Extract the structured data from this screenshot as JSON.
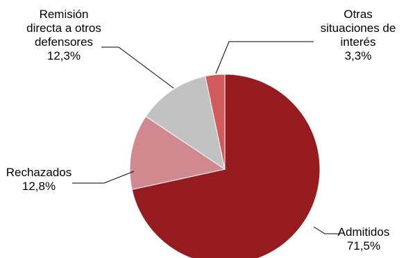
{
  "chart_data": {
    "type": "pie",
    "title": "",
    "slices": [
      {
        "name": "Admitidos",
        "value": 71.5,
        "label_lines": [
          "Admitidos"
        ],
        "value_label": "71,5%",
        "color": "#961c20"
      },
      {
        "name": "Rechazados",
        "value": 12.8,
        "label_lines": [
          "Rechazados"
        ],
        "value_label": "12,8%",
        "color": "#d0898e"
      },
      {
        "name": "Remisión directa a otros defensores",
        "value": 12.3,
        "label_lines": [
          "Remisión",
          "directa a otros",
          "defensores"
        ],
        "value_label": "12,3%",
        "color": "#c2c2c2"
      },
      {
        "name": "Otras situaciones de interés",
        "value": 3.3,
        "label_lines": [
          "Otras",
          "situaciones de",
          "interés"
        ],
        "value_label": "3,3%",
        "color": "#d05b5b"
      }
    ],
    "start_angle_deg": 0,
    "direction": "clockwise",
    "legend": "none"
  }
}
